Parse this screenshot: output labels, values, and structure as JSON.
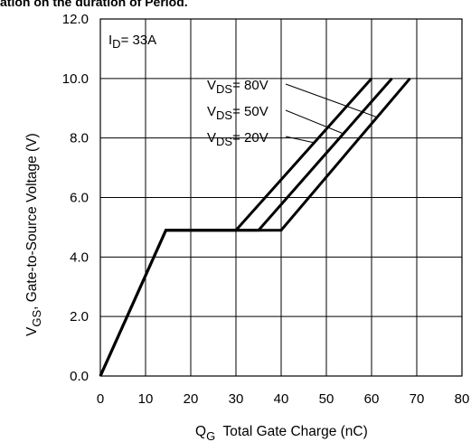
{
  "caption": "ation on the duration of Period.",
  "chart_data": {
    "type": "line",
    "title": "",
    "x_label": {
      "main": "Q",
      "sub": "G",
      "rest": "  Total Gate Charge (nC)"
    },
    "y_label": {
      "main": "V",
      "sub": "GS",
      "rest": ", Gate-to-Source Voltage (V)"
    },
    "xlim": [
      0,
      80
    ],
    "ylim": [
      0,
      12
    ],
    "x_ticks": [
      "0",
      "10",
      "20",
      "30",
      "40",
      "50",
      "60",
      "70",
      "80"
    ],
    "y_ticks": [
      "0.0",
      "2.0",
      "4.0",
      "6.0",
      "8.0",
      "10.0",
      "12.0"
    ],
    "grid": true,
    "condition": {
      "main": "I",
      "sub": "D",
      "rest": "= 33A"
    },
    "series": [
      {
        "name": "VDS= 80V",
        "label": {
          "main": "V",
          "sub": "DS",
          "rest": "= 80V"
        },
        "x": [
          0,
          14.5,
          30,
          60
        ],
        "y": [
          0,
          4.9,
          4.9,
          10.0
        ]
      },
      {
        "name": "VDS= 50V",
        "label": {
          "main": "V",
          "sub": "DS",
          "rest": "= 50V"
        },
        "x": [
          0,
          14.5,
          35,
          64.5
        ],
        "y": [
          0,
          4.9,
          4.9,
          10.0
        ]
      },
      {
        "name": "VDS= 20V",
        "label": {
          "main": "V",
          "sub": "DS",
          "rest": "= 20V"
        },
        "x": [
          0,
          14.5,
          40,
          68.5
        ],
        "y": [
          0,
          4.9,
          4.9,
          10.0
        ]
      }
    ],
    "line_color": "#000000",
    "grid_color": "#000000"
  }
}
